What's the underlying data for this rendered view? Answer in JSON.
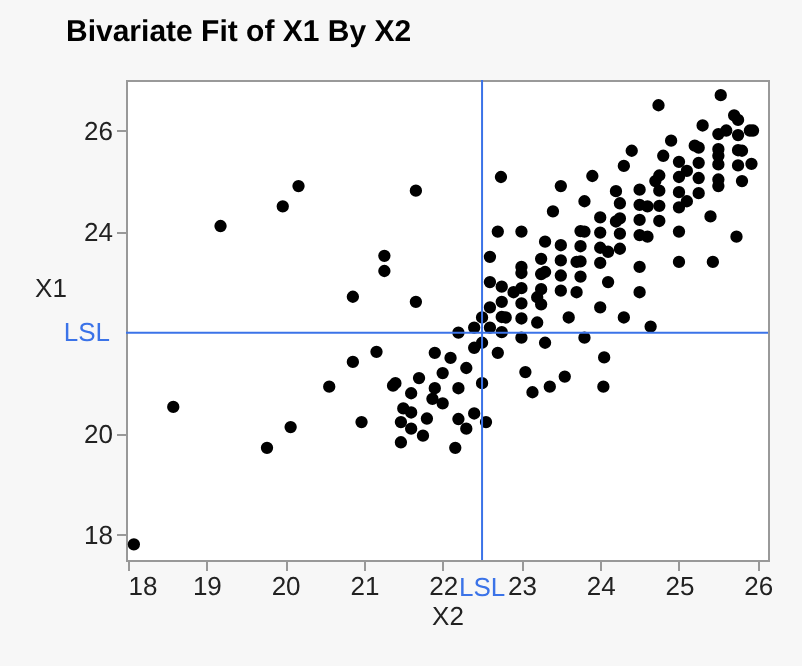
{
  "chart_data": {
    "type": "scatter",
    "title": "Bivariate Fit of X1 By X2",
    "xlabel": "X2",
    "ylabel": "X1",
    "xlim": [
      17.98,
      26.13
    ],
    "ylim": [
      17.5,
      27.0
    ],
    "xticks": [
      18,
      19,
      20,
      21,
      22,
      23,
      24,
      25,
      26
    ],
    "yticks": [
      18,
      20,
      24,
      26
    ],
    "grid": false,
    "marker": "circle",
    "legend": false,
    "ref_lines": [
      {
        "axis": "x",
        "value": 22.5,
        "label": "LSL",
        "color": "#3b73e8"
      },
      {
        "axis": "y",
        "value": 22.0,
        "label": "LSL",
        "color": "#3b73e8"
      }
    ],
    "series": [
      {
        "color": "#000000",
        "x": [
          19.18,
          19.97,
          20.17,
          21.66,
          21.26,
          21.26,
          20.86,
          21.66,
          20.86,
          21.16,
          24.74,
          25.53,
          25.94,
          25.92,
          25.73,
          25.43,
          24.64,
          24.05,
          24.04,
          22.74,
          18.08,
          18.58,
          19.77,
          20.07,
          20.56,
          20.97,
          21.47,
          21.47,
          21.75,
          22.16,
          22.55,
          23.14,
          23.36,
          23.55,
          23.05,
          21.37,
          21.87,
          22.2,
          21.6,
          22.6,
          22.6,
          22.6,
          22.6,
          22.7,
          22.8,
          22.9,
          23.0,
          23.0,
          23.2,
          23.2,
          23.3,
          23.3,
          23.4,
          23.5,
          23.6,
          23.7,
          23.7,
          23.8,
          23.8,
          23.9,
          24.0,
          24.1,
          24.1,
          24.2,
          24.2,
          24.3,
          24.4,
          24.5,
          24.5,
          24.6,
          24.6,
          24.7,
          24.8,
          24.9,
          25.0,
          25.0,
          25.1,
          25.1,
          25.2,
          25.3,
          25.4,
          25.5,
          25.5,
          25.6,
          25.7,
          25.8,
          25.8,
          25.9,
          22.4,
          22.5,
          22.7,
          23.0,
          23.3,
          23.8,
          24.3,
          21.5,
          21.6,
          21.7,
          21.8,
          21.9,
          22.0,
          22.0,
          22.1,
          22.2,
          22.3,
          22.4,
          22.4,
          22.5,
          21.4,
          21.9,
          22.2,
          22.5,
          21.6,
          22.3,
          22.75,
          22.75,
          22.75,
          22.75,
          23.0,
          23.0,
          23.0,
          23.0,
          23.25,
          23.25,
          23.25,
          23.25,
          23.5,
          23.5,
          23.5,
          23.5,
          23.75,
          23.75,
          23.75,
          23.75,
          24.0,
          24.0,
          24.0,
          24.0,
          24.25,
          24.25,
          24.25,
          24.25,
          24.5,
          24.5,
          24.5,
          24.5,
          24.75,
          24.75,
          24.75,
          24.75,
          25.0,
          25.0,
          25.0,
          25.0,
          25.25,
          25.25,
          25.25,
          25.25,
          25.5,
          25.5,
          25.5,
          25.5,
          25.75,
          25.75,
          25.75,
          25.75
        ],
        "values": [
          24.11,
          24.5,
          24.9,
          24.81,
          23.52,
          23.22,
          22.71,
          22.61,
          21.42,
          21.62,
          26.5,
          26.7,
          26.0,
          25.34,
          23.9,
          23.4,
          22.12,
          21.51,
          20.93,
          25.08,
          17.81,
          20.53,
          19.72,
          20.13,
          20.93,
          20.23,
          20.23,
          19.83,
          19.96,
          19.72,
          20.23,
          20.82,
          20.93,
          21.13,
          21.22,
          20.95,
          20.69,
          20.29,
          20.42,
          22.1,
          22.5,
          23.0,
          23.5,
          24.0,
          22.3,
          22.8,
          23.3,
          24.0,
          22.2,
          22.7,
          23.2,
          23.8,
          24.4,
          24.9,
          22.3,
          22.8,
          23.4,
          24.0,
          24.6,
          25.1,
          22.5,
          23.0,
          23.6,
          24.2,
          24.8,
          25.3,
          25.6,
          22.8,
          23.3,
          23.9,
          24.5,
          25.0,
          25.5,
          25.8,
          23.4,
          24.0,
          24.6,
          25.2,
          25.7,
          26.1,
          24.3,
          24.9,
          25.5,
          26.0,
          26.3,
          25.0,
          25.6,
          26.0,
          22.1,
          21.8,
          21.6,
          21.9,
          21.8,
          21.9,
          22.3,
          20.5,
          20.8,
          21.1,
          20.3,
          20.9,
          21.2,
          20.6,
          21.5,
          20.9,
          21.3,
          21.7,
          20.4,
          21.0,
          21.0,
          21.6,
          22.0,
          22.3,
          20.1,
          20.1,
          22.01,
          22.31,
          22.61,
          22.91,
          22.28,
          22.58,
          22.88,
          23.18,
          22.56,
          22.86,
          23.16,
          23.46,
          22.83,
          23.13,
          23.43,
          23.73,
          23.11,
          23.41,
          23.71,
          24.01,
          23.38,
          23.68,
          23.98,
          24.28,
          23.66,
          23.96,
          24.26,
          24.56,
          23.93,
          24.23,
          24.53,
          24.83,
          24.21,
          24.51,
          24.81,
          25.11,
          24.48,
          24.78,
          25.08,
          25.38,
          24.76,
          25.06,
          25.36,
          25.66,
          25.03,
          25.33,
          25.63,
          25.93,
          25.31,
          25.61,
          25.91,
          26.21
        ]
      }
    ]
  }
}
